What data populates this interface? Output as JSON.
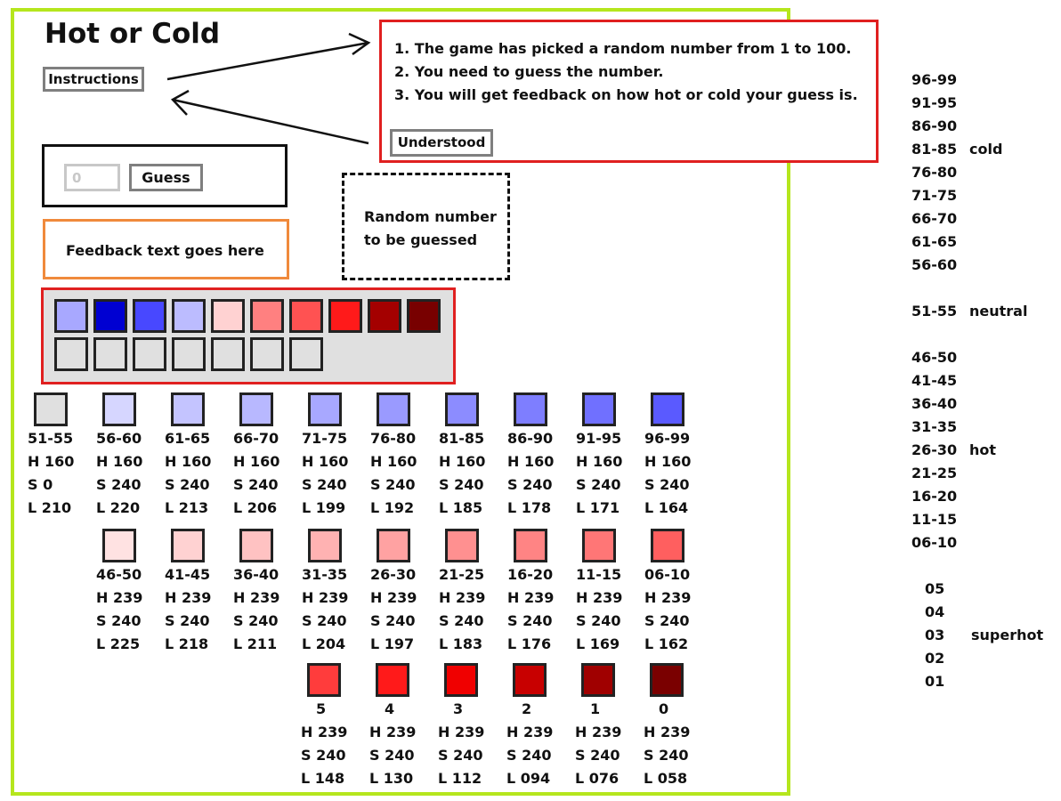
{
  "title": "Hot or Cold",
  "instructions_button": "Instructions",
  "instructions": [
    "1. The game has picked a random number from 1 to 100.",
    "2. You need to guess the number.",
    "3. You will get feedback on how hot or cold your guess is."
  ],
  "understood_button": "Understood",
  "guess_input_value": "0",
  "guess_button": "Guess",
  "feedback_text": "Feedback text goes here",
  "random_box_text": [
    "Random number",
    "to be guessed"
  ],
  "colors": {
    "frame": "#b5e61d",
    "instructions_border": "#e02020",
    "feedback_border": "#f08a3c",
    "history_bg": "#e0e0e0"
  },
  "history": {
    "filled": [
      "#a8a8ff",
      "#0000d2",
      "#4848ff",
      "#bcbcff",
      "#ffd2d2",
      "#ff8080",
      "#ff5252",
      "#ff1a1a",
      "#a40000",
      "#780000"
    ],
    "empty_count": 7,
    "empty_color": "#e0e0e0"
  },
  "key_cold": [
    {
      "range": "51-55",
      "h": "H 160",
      "s": "S 0",
      "l": "L 210",
      "color": "#e0e0e0"
    },
    {
      "range": "56-60",
      "h": "H 160",
      "s": "S 240",
      "l": "L 220",
      "color": "#d6d6ff"
    },
    {
      "range": "61-65",
      "h": "H 160",
      "s": "S 240",
      "l": "L 213",
      "color": "#c4c4ff"
    },
    {
      "range": "66-70",
      "h": "H 160",
      "s": "S 240",
      "l": "L 206",
      "color": "#b8b8ff"
    },
    {
      "range": "71-75",
      "h": "H 160",
      "s": "S 240",
      "l": "L 199",
      "color": "#a8a8ff"
    },
    {
      "range": "76-80",
      "h": "H 160",
      "s": "S 240",
      "l": "L 192",
      "color": "#9a9aff"
    },
    {
      "range": "81-85",
      "h": "H 160",
      "s": "S 240",
      "l": "L 185",
      "color": "#8c8cff"
    },
    {
      "range": "86-90",
      "h": "H 160",
      "s": "S 240",
      "l": "L 178",
      "color": "#7e7eff"
    },
    {
      "range": "91-95",
      "h": "H 160",
      "s": "S 240",
      "l": "L 171",
      "color": "#7070ff"
    },
    {
      "range": "96-99",
      "h": "H 160",
      "s": "S 240",
      "l": "L 164",
      "color": "#5a5aff"
    }
  ],
  "key_hot": [
    {
      "range": "46-50",
      "h": "H 239",
      "s": "S 240",
      "l": "L 225",
      "color": "#ffe2e2"
    },
    {
      "range": "41-45",
      "h": "H 239",
      "s": "S 240",
      "l": "L 218",
      "color": "#ffd2d2"
    },
    {
      "range": "36-40",
      "h": "H 239",
      "s": "S 240",
      "l": "L 211",
      "color": "#ffc2c2"
    },
    {
      "range": "31-35",
      "h": "H 239",
      "s": "S 240",
      "l": "L 204",
      "color": "#ffb2b2"
    },
    {
      "range": "26-30",
      "h": "H 239",
      "s": "S 240",
      "l": "L 197",
      "color": "#ffa2a2"
    },
    {
      "range": "21-25",
      "h": "H 239",
      "s": "S 240",
      "l": "L 183",
      "color": "#ff9090"
    },
    {
      "range": "16-20",
      "h": "H 239",
      "s": "S 240",
      "l": "L 176",
      "color": "#ff8484"
    },
    {
      "range": "11-15",
      "h": "H 239",
      "s": "S 240",
      "l": "L 169",
      "color": "#ff7676"
    },
    {
      "range": "06-10",
      "h": "H 239",
      "s": "S 240",
      "l": "L 162",
      "color": "#ff5f5f"
    }
  ],
  "key_superhot": [
    {
      "range": "5",
      "h": "H 239",
      "s": "S 240",
      "l": "L 148",
      "color": "#ff3c3c"
    },
    {
      "range": "4",
      "h": "H 239",
      "s": "S 240",
      "l": "L 130",
      "color": "#ff1a1a"
    },
    {
      "range": "3",
      "h": "H 239",
      "s": "S 240",
      "l": "L 112",
      "color": "#f00000"
    },
    {
      "range": "2",
      "h": "H 239",
      "s": "S 240",
      "l": "L 094",
      "color": "#c80000"
    },
    {
      "range": "1",
      "h": "H 239",
      "s": "S 240",
      "l": "L 076",
      "color": "#a00000"
    },
    {
      "range": "0",
      "h": "H 239",
      "s": "S 240",
      "l": "L 058",
      "color": "#7a0000"
    }
  ],
  "range_list": [
    {
      "text": "96-99",
      "tag": ""
    },
    {
      "text": "91-95",
      "tag": ""
    },
    {
      "text": "86-90",
      "tag": ""
    },
    {
      "text": "81-85",
      "tag": "cold"
    },
    {
      "text": "76-80",
      "tag": ""
    },
    {
      "text": "71-75",
      "tag": ""
    },
    {
      "text": "66-70",
      "tag": ""
    },
    {
      "text": "61-65",
      "tag": ""
    },
    {
      "text": "56-60",
      "tag": ""
    },
    {
      "text": "51-55",
      "tag": "neutral"
    },
    {
      "text": "46-50",
      "tag": ""
    },
    {
      "text": "41-45",
      "tag": ""
    },
    {
      "text": "36-40",
      "tag": ""
    },
    {
      "text": "31-35",
      "tag": ""
    },
    {
      "text": "26-30",
      "tag": "hot"
    },
    {
      "text": "21-25",
      "tag": ""
    },
    {
      "text": "16-20",
      "tag": ""
    },
    {
      "text": "11-15",
      "tag": ""
    },
    {
      "text": "06-10",
      "tag": ""
    },
    {
      "text": "05",
      "tag": ""
    },
    {
      "text": "04",
      "tag": ""
    },
    {
      "text": "03",
      "tag": "superhot"
    },
    {
      "text": "02",
      "tag": ""
    },
    {
      "text": "01",
      "tag": ""
    }
  ]
}
